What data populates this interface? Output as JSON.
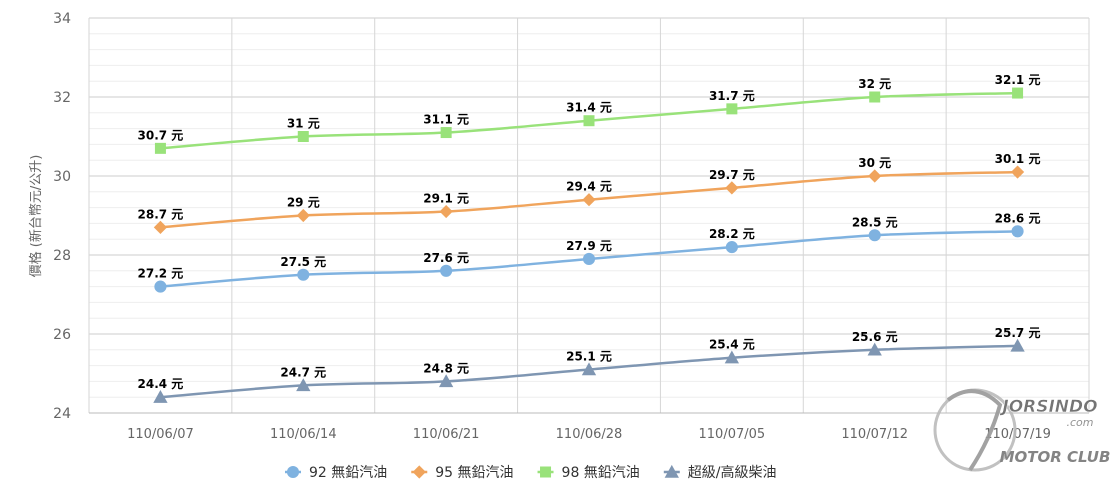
{
  "chart_data": {
    "type": "line",
    "title": "",
    "xlabel": "",
    "ylabel": "價格 (新台幣元/公升)",
    "ylim": [
      24,
      34
    ],
    "yticks": [
      24,
      26,
      28,
      30,
      32,
      34
    ],
    "grid": true,
    "legend_position": "bottom",
    "label_suffix": " 元",
    "categories": [
      "110/06/07",
      "110/06/14",
      "110/06/21",
      "110/06/28",
      "110/07/05",
      "110/07/12",
      "110/07/19"
    ],
    "series": [
      {
        "name": "92 無鉛汽油",
        "color": "#7fb2e0",
        "marker": "circle",
        "values": [
          27.2,
          27.5,
          27.6,
          27.9,
          28.2,
          28.5,
          28.6
        ]
      },
      {
        "name": "95 無鉛汽油",
        "color": "#f0a45c",
        "marker": "diamond",
        "values": [
          28.7,
          29,
          29.1,
          29.4,
          29.7,
          30,
          30.1
        ]
      },
      {
        "name": "98 無鉛汽油",
        "color": "#99e27a",
        "marker": "square",
        "values": [
          30.7,
          31,
          31.1,
          31.4,
          31.7,
          32,
          32.1
        ]
      },
      {
        "name": "超級/高級柴油",
        "color": "#7f96b2",
        "marker": "triangle",
        "values": [
          24.4,
          24.7,
          24.8,
          25.1,
          25.4,
          25.6,
          25.7
        ]
      }
    ]
  },
  "watermark": {
    "text_top": "JORSINDO",
    "text_sub": ".com",
    "text_bottom": "MOTOR CLUB"
  }
}
